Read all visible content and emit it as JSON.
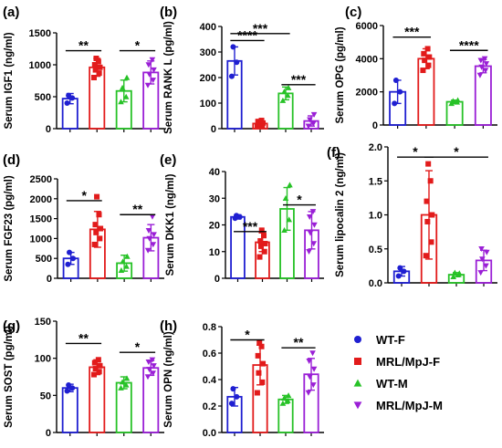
{
  "figure": {
    "legend": [
      {
        "label": "WT-F",
        "color": "#1f1fd1",
        "marker": "circle"
      },
      {
        "label": "MRL/MpJ-F",
        "color": "#e21b1b",
        "marker": "square"
      },
      {
        "label": "WT-M",
        "color": "#27c227",
        "marker": "triangle"
      },
      {
        "label": "MRL/MpJ-M",
        "color": "#9a1fd6",
        "marker": "triangle-down"
      }
    ]
  },
  "chart_data": [
    {
      "type": "bar",
      "panel": "(a)",
      "ylabel": "Serum IGF1 (ng/ml)",
      "ylim": [
        0,
        1500
      ],
      "yticks": [
        "0",
        "500",
        "1000",
        "1500"
      ],
      "groups": [
        {
          "name": "WT-F",
          "mean": 470,
          "sd": 80,
          "points": [
            400,
            480,
            520
          ]
        },
        {
          "name": "MRL/MpJ-F",
          "mean": 960,
          "sd": 140,
          "points": [
            800,
            870,
            920,
            960,
            1000,
            1050,
            1100
          ]
        },
        {
          "name": "WT-M",
          "mean": 590,
          "sd": 170,
          "points": [
            420,
            500,
            640,
            800
          ]
        },
        {
          "name": "MRL/MpJ-M",
          "mean": 880,
          "sd": 180,
          "points": [
            680,
            760,
            850,
            920,
            1000,
            1080
          ]
        }
      ],
      "significance": [
        {
          "from": 1,
          "to": 2,
          "label": "**",
          "y": 1220
        },
        {
          "from": 3,
          "to": 4,
          "label": "*",
          "y": 1220
        }
      ]
    },
    {
      "type": "bar",
      "panel": "(b)",
      "ylabel": "Serum RANK L (pg/ml)",
      "ylim": [
        0,
        400
      ],
      "yticks": [
        "0",
        "100",
        "200",
        "300",
        "400"
      ],
      "groups": [
        {
          "name": "WT-F",
          "mean": 265,
          "sd": 55,
          "points": [
            205,
            260,
            320
          ]
        },
        {
          "name": "MRL/MpJ-F",
          "mean": 20,
          "sd": 10,
          "points": [
            8,
            12,
            18,
            22,
            28,
            32
          ]
        },
        {
          "name": "WT-M",
          "mean": 138,
          "sd": 25,
          "points": [
            110,
            130,
            145,
            160
          ]
        },
        {
          "name": "MRL/MpJ-M",
          "mean": 30,
          "sd": 20,
          "points": [
            10,
            20,
            35,
            55
          ]
        }
      ],
      "significance": [
        {
          "from": 1,
          "to": 3,
          "label": "***",
          "y": 372
        },
        {
          "from": 1,
          "to": 2,
          "label": "****",
          "y": 345
        },
        {
          "from": 3,
          "to": 4,
          "label": "***",
          "y": 172
        }
      ]
    },
    {
      "type": "bar",
      "panel": "(c)",
      "ylabel": "Serum OPG (pg/ml)",
      "ylim": [
        0,
        6000
      ],
      "yticks": [
        "0",
        "2000",
        "4000",
        "6000"
      ],
      "groups": [
        {
          "name": "WT-F",
          "mean": 2000,
          "sd": 700,
          "points": [
            1300,
            2000,
            2700
          ]
        },
        {
          "name": "MRL/MpJ-F",
          "mean": 4000,
          "sd": 600,
          "points": [
            3300,
            3600,
            3900,
            4100,
            4300,
            4600
          ]
        },
        {
          "name": "WT-M",
          "mean": 1400,
          "sd": 100,
          "points": [
            1300,
            1380,
            1450,
            1500
          ]
        },
        {
          "name": "MRL/MpJ-M",
          "mean": 3550,
          "sd": 400,
          "points": [
            3000,
            3300,
            3500,
            3700,
            3900,
            4000
          ]
        }
      ],
      "significance": [
        {
          "from": 1,
          "to": 2,
          "label": "***",
          "y": 5300
        },
        {
          "from": 3,
          "to": 4,
          "label": "****",
          "y": 4500
        }
      ]
    },
    {
      "type": "bar",
      "panel": "(d)",
      "ylabel": "Serum FGF23 (pg/ml)",
      "ylim": [
        0,
        2500
      ],
      "yticks": [
        "0",
        "500",
        "1000",
        "1500",
        "2000",
        "2500"
      ],
      "groups": [
        {
          "name": "WT-F",
          "mean": 500,
          "sd": 150,
          "points": [
            350,
            500,
            650
          ]
        },
        {
          "name": "MRL/MpJ-F",
          "mean": 1230,
          "sd": 450,
          "points": [
            850,
            1000,
            1150,
            1250,
            1350,
            1600,
            2050
          ]
        },
        {
          "name": "WT-M",
          "mean": 380,
          "sd": 200,
          "points": [
            200,
            300,
            420,
            550
          ]
        },
        {
          "name": "MRL/MpJ-M",
          "mean": 1020,
          "sd": 330,
          "points": [
            700,
            850,
            1000,
            1100,
            1200,
            1550
          ]
        }
      ],
      "significance": [
        {
          "from": 1,
          "to": 2,
          "label": "*",
          "y": 1950
        },
        {
          "from": 3,
          "to": 4,
          "label": "**",
          "y": 1600
        }
      ]
    },
    {
      "type": "bar",
      "panel": "(e)",
      "ylabel": "Serum DKK1 (ng/ml)",
      "ylim": [
        0,
        40
      ],
      "yticks": [
        "0",
        "10",
        "20",
        "30",
        "40"
      ],
      "groups": [
        {
          "name": "WT-F",
          "mean": 23,
          "sd": 0.8,
          "points": [
            22.5,
            23,
            23.5
          ]
        },
        {
          "name": "MRL/MpJ-F",
          "mean": 13.5,
          "sd": 3.5,
          "points": [
            8,
            10,
            12,
            13,
            14,
            16,
            18
          ]
        },
        {
          "name": "WT-M",
          "mean": 26,
          "sd": 8,
          "points": [
            18,
            22,
            30,
            35
          ]
        },
        {
          "name": "MRL/MpJ-M",
          "mean": 18,
          "sd": 7,
          "points": [
            10,
            13,
            17,
            20,
            23,
            25
          ]
        }
      ],
      "significance": [
        {
          "from": 1,
          "to": 2,
          "label": "***",
          "y": 17.5
        },
        {
          "from": 3,
          "to": 4,
          "label": "*",
          "y": 27.5
        }
      ]
    },
    {
      "type": "bar",
      "panel": "(f)",
      "ylabel": "Serum lipocalin 2 (ng/ml)",
      "ylim": [
        0,
        2.0
      ],
      "yticks": [
        "0.0",
        "0.5",
        "1.0",
        "1.5",
        "2.0"
      ],
      "groups": [
        {
          "name": "WT-F",
          "mean": 0.17,
          "sd": 0.07,
          "points": [
            0.1,
            0.17,
            0.22
          ]
        },
        {
          "name": "MRL/MpJ-F",
          "mean": 1.0,
          "sd": 0.65,
          "points": [
            0.4,
            0.6,
            0.9,
            1.0,
            1.2,
            1.5,
            1.75
          ]
        },
        {
          "name": "WT-M",
          "mean": 0.12,
          "sd": 0.03,
          "points": [
            0.09,
            0.12,
            0.15,
            0.14
          ]
        },
        {
          "name": "MRL/MpJ-M",
          "mean": 0.33,
          "sd": 0.15,
          "points": [
            0.15,
            0.25,
            0.35,
            0.45,
            0.5
          ]
        }
      ],
      "significance": [
        {
          "from": 1,
          "to": 2,
          "label": "*",
          "y": 1.85
        },
        {
          "from": 2,
          "to": 4,
          "label": "*",
          "y": 1.85
        }
      ]
    },
    {
      "type": "bar",
      "panel": "(g)",
      "ylabel": "Serum SOST (pg/ml)",
      "ylim": [
        0,
        150
      ],
      "yticks": [
        "0",
        "50",
        "100",
        "150"
      ],
      "groups": [
        {
          "name": "WT-F",
          "mean": 60,
          "sd": 5,
          "points": [
            56,
            60,
            64
          ]
        },
        {
          "name": "MRL/MpJ-F",
          "mean": 88,
          "sd": 10,
          "points": [
            78,
            82,
            86,
            90,
            94,
            98
          ]
        },
        {
          "name": "WT-M",
          "mean": 67,
          "sd": 8,
          "points": [
            60,
            64,
            68,
            73
          ]
        },
        {
          "name": "MRL/MpJ-M",
          "mean": 87,
          "sd": 10,
          "points": [
            75,
            80,
            85,
            90,
            95,
            98
          ]
        }
      ],
      "significance": [
        {
          "from": 1,
          "to": 2,
          "label": "**",
          "y": 120
        },
        {
          "from": 3,
          "to": 4,
          "label": "*",
          "y": 108
        }
      ]
    },
    {
      "type": "bar",
      "panel": "(h)",
      "ylabel": "Serum OPN (ng/ml)",
      "ylim": [
        0,
        0.8
      ],
      "yticks": [
        "0.0",
        "0.2",
        "0.4",
        "0.6",
        "0.8"
      ],
      "groups": [
        {
          "name": "WT-F",
          "mean": 0.27,
          "sd": 0.07,
          "points": [
            0.22,
            0.27,
            0.33
          ]
        },
        {
          "name": "MRL/MpJ-F",
          "mean": 0.51,
          "sd": 0.15,
          "points": [
            0.3,
            0.38,
            0.45,
            0.52,
            0.58,
            0.65,
            0.68
          ]
        },
        {
          "name": "WT-M",
          "mean": 0.25,
          "sd": 0.03,
          "points": [
            0.22,
            0.24,
            0.26,
            0.28
          ]
        },
        {
          "name": "MRL/MpJ-M",
          "mean": 0.44,
          "sd": 0.12,
          "points": [
            0.3,
            0.36,
            0.42,
            0.48,
            0.54,
            0.6
          ]
        }
      ],
      "significance": [
        {
          "from": 1,
          "to": 2,
          "label": "*",
          "y": 0.7
        },
        {
          "from": 3,
          "to": 4,
          "label": "**",
          "y": 0.64
        }
      ]
    }
  ]
}
